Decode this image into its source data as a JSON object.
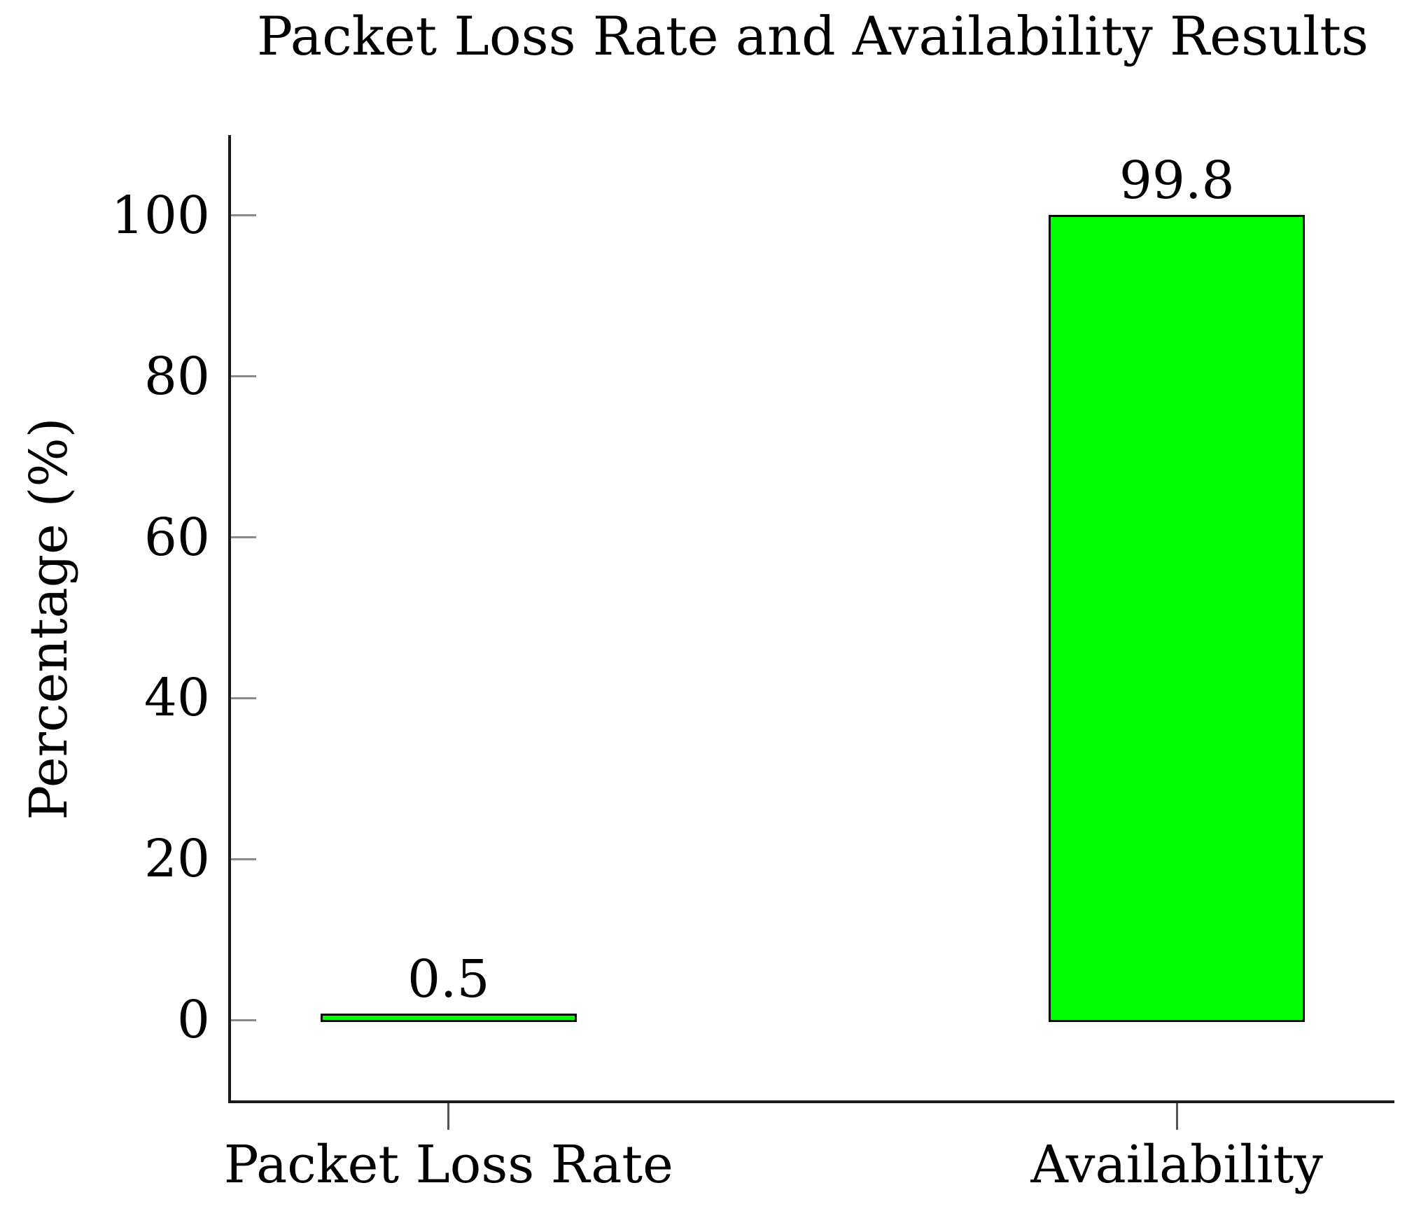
{
  "chart_data": {
    "type": "bar",
    "title": "Packet Loss Rate and Availability Results",
    "xlabel": "",
    "ylabel": "Percentage (%)",
    "categories": [
      "Packet Loss Rate",
      "Availability"
    ],
    "values": [
      0.5,
      99.8
    ],
    "value_labels": [
      "0.5",
      "99.8"
    ],
    "yticks": [
      0,
      20,
      40,
      60,
      80,
      100
    ],
    "ytick_labels": [
      "0",
      "20",
      "40",
      "60",
      "80",
      "100"
    ],
    "ylim": [
      -10,
      110
    ],
    "grid": false,
    "legend_position": "none",
    "bar_fill_color": "#00ff00",
    "bar_border_color": "#000000",
    "axis_color": "#1a1a1a",
    "ytick_mark_color": "#8a8a8a",
    "xtick_mark_color": "#555555",
    "text_color": "#000000"
  }
}
